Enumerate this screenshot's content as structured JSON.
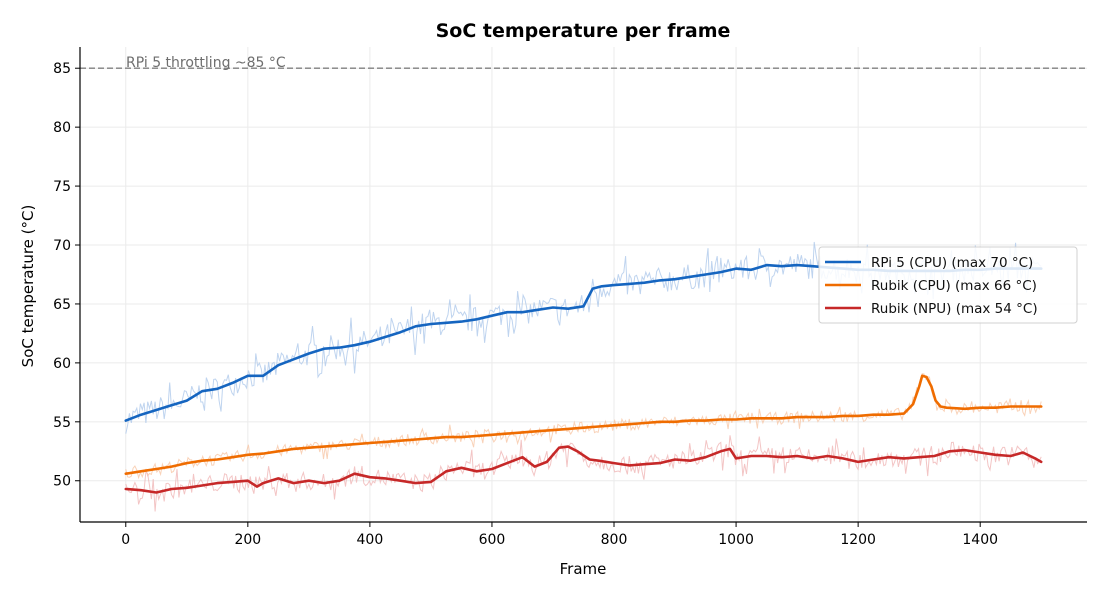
{
  "chart_data": {
    "type": "line",
    "title": "SoC temperature per frame",
    "xlabel": "Frame",
    "ylabel": "SoC temperature (°C)",
    "xlim": [
      -75,
      1575
    ],
    "ylim": [
      46.5,
      86.8
    ],
    "xticks": [
      0,
      200,
      400,
      600,
      800,
      1000,
      1200,
      1400
    ],
    "yticks": [
      50,
      55,
      60,
      65,
      70,
      75,
      80,
      85
    ],
    "grid": true,
    "legend_position": "center-right",
    "reference_line": {
      "y": 85,
      "label": "RPi 5 throttling ~85 °C",
      "color": "#808080",
      "style": "dashed"
    },
    "series": [
      {
        "name": "RPi 5 (CPU) (max 70 °C)",
        "color": "#1565c0",
        "raw_color": "#a9c6ea",
        "x": [
          0,
          25,
          50,
          75,
          100,
          125,
          150,
          175,
          200,
          225,
          250,
          275,
          300,
          325,
          350,
          375,
          400,
          425,
          450,
          475,
          500,
          525,
          550,
          575,
          600,
          625,
          650,
          675,
          700,
          725,
          750,
          765,
          780,
          800,
          825,
          850,
          875,
          900,
          925,
          950,
          975,
          1000,
          1025,
          1050,
          1075,
          1100,
          1125,
          1150,
          1175,
          1200,
          1225,
          1250,
          1275,
          1300,
          1325,
          1350,
          1375,
          1400,
          1425,
          1450,
          1475,
          1500
        ],
        "y": [
          55.1,
          55.6,
          56.0,
          56.4,
          56.8,
          57.6,
          57.8,
          58.3,
          58.9,
          58.9,
          59.8,
          60.3,
          60.8,
          61.2,
          61.3,
          61.5,
          61.8,
          62.2,
          62.6,
          63.1,
          63.3,
          63.4,
          63.5,
          63.7,
          64.0,
          64.3,
          64.3,
          64.5,
          64.7,
          64.6,
          64.8,
          66.3,
          66.5,
          66.6,
          66.7,
          66.8,
          67.0,
          67.1,
          67.3,
          67.5,
          67.7,
          68.0,
          67.9,
          68.3,
          68.2,
          68.3,
          68.2,
          68.1,
          68.0,
          67.9,
          67.9,
          67.8,
          67.8,
          67.8,
          67.8,
          67.8,
          67.9,
          67.9,
          68.0,
          68.0,
          68.0,
          68.0
        ]
      },
      {
        "name": "Rubik (CPU) (max 66 °C)",
        "color": "#ef6c00",
        "raw_color": "#f7c3a0",
        "x": [
          0,
          25,
          50,
          75,
          100,
          125,
          150,
          175,
          200,
          225,
          250,
          275,
          300,
          325,
          350,
          375,
          400,
          425,
          450,
          475,
          500,
          525,
          550,
          575,
          600,
          625,
          650,
          675,
          700,
          725,
          750,
          775,
          800,
          825,
          850,
          875,
          900,
          925,
          950,
          975,
          1000,
          1025,
          1050,
          1075,
          1100,
          1125,
          1150,
          1175,
          1200,
          1225,
          1250,
          1275,
          1290,
          1300,
          1305,
          1312,
          1320,
          1327,
          1335,
          1345,
          1375,
          1400,
          1425,
          1450,
          1475,
          1500
        ],
        "y": [
          50.6,
          50.8,
          51.0,
          51.2,
          51.5,
          51.7,
          51.8,
          52.0,
          52.2,
          52.3,
          52.5,
          52.7,
          52.8,
          52.9,
          53.0,
          53.1,
          53.2,
          53.3,
          53.4,
          53.5,
          53.6,
          53.7,
          53.7,
          53.8,
          53.9,
          54.0,
          54.1,
          54.2,
          54.3,
          54.4,
          54.5,
          54.6,
          54.7,
          54.8,
          54.9,
          55.0,
          55.0,
          55.1,
          55.1,
          55.2,
          55.2,
          55.3,
          55.3,
          55.3,
          55.4,
          55.4,
          55.4,
          55.5,
          55.5,
          55.6,
          55.6,
          55.7,
          56.5,
          58.0,
          58.9,
          58.8,
          58.0,
          56.8,
          56.3,
          56.2,
          56.1,
          56.2,
          56.2,
          56.3,
          56.3,
          56.3
        ]
      },
      {
        "name": "Rubik (NPU) (max 54 °C)",
        "color": "#c62828",
        "raw_color": "#efb2b2",
        "x": [
          0,
          25,
          50,
          75,
          100,
          125,
          150,
          175,
          200,
          215,
          225,
          250,
          275,
          300,
          325,
          350,
          375,
          400,
          425,
          450,
          475,
          500,
          525,
          550,
          575,
          600,
          625,
          650,
          670,
          690,
          710,
          725,
          740,
          760,
          775,
          800,
          825,
          850,
          875,
          900,
          925,
          950,
          975,
          990,
          1000,
          1025,
          1050,
          1075,
          1100,
          1125,
          1150,
          1175,
          1200,
          1225,
          1250,
          1275,
          1300,
          1325,
          1350,
          1375,
          1400,
          1425,
          1450,
          1470,
          1490,
          1500
        ],
        "y": [
          49.3,
          49.2,
          49.0,
          49.3,
          49.4,
          49.6,
          49.8,
          49.9,
          50.0,
          49.5,
          49.8,
          50.2,
          49.8,
          50.0,
          49.8,
          50.0,
          50.6,
          50.3,
          50.2,
          50.0,
          49.8,
          49.9,
          50.8,
          51.1,
          50.8,
          51.0,
          51.5,
          52.0,
          51.2,
          51.6,
          52.8,
          52.9,
          52.5,
          51.8,
          51.7,
          51.5,
          51.3,
          51.4,
          51.5,
          51.8,
          51.7,
          52.0,
          52.5,
          52.7,
          51.9,
          52.1,
          52.1,
          52.0,
          52.1,
          51.9,
          52.1,
          51.9,
          51.6,
          51.8,
          52.0,
          51.9,
          52.0,
          52.1,
          52.5,
          52.6,
          52.4,
          52.2,
          52.1,
          52.4,
          51.9,
          51.6
        ]
      }
    ]
  }
}
